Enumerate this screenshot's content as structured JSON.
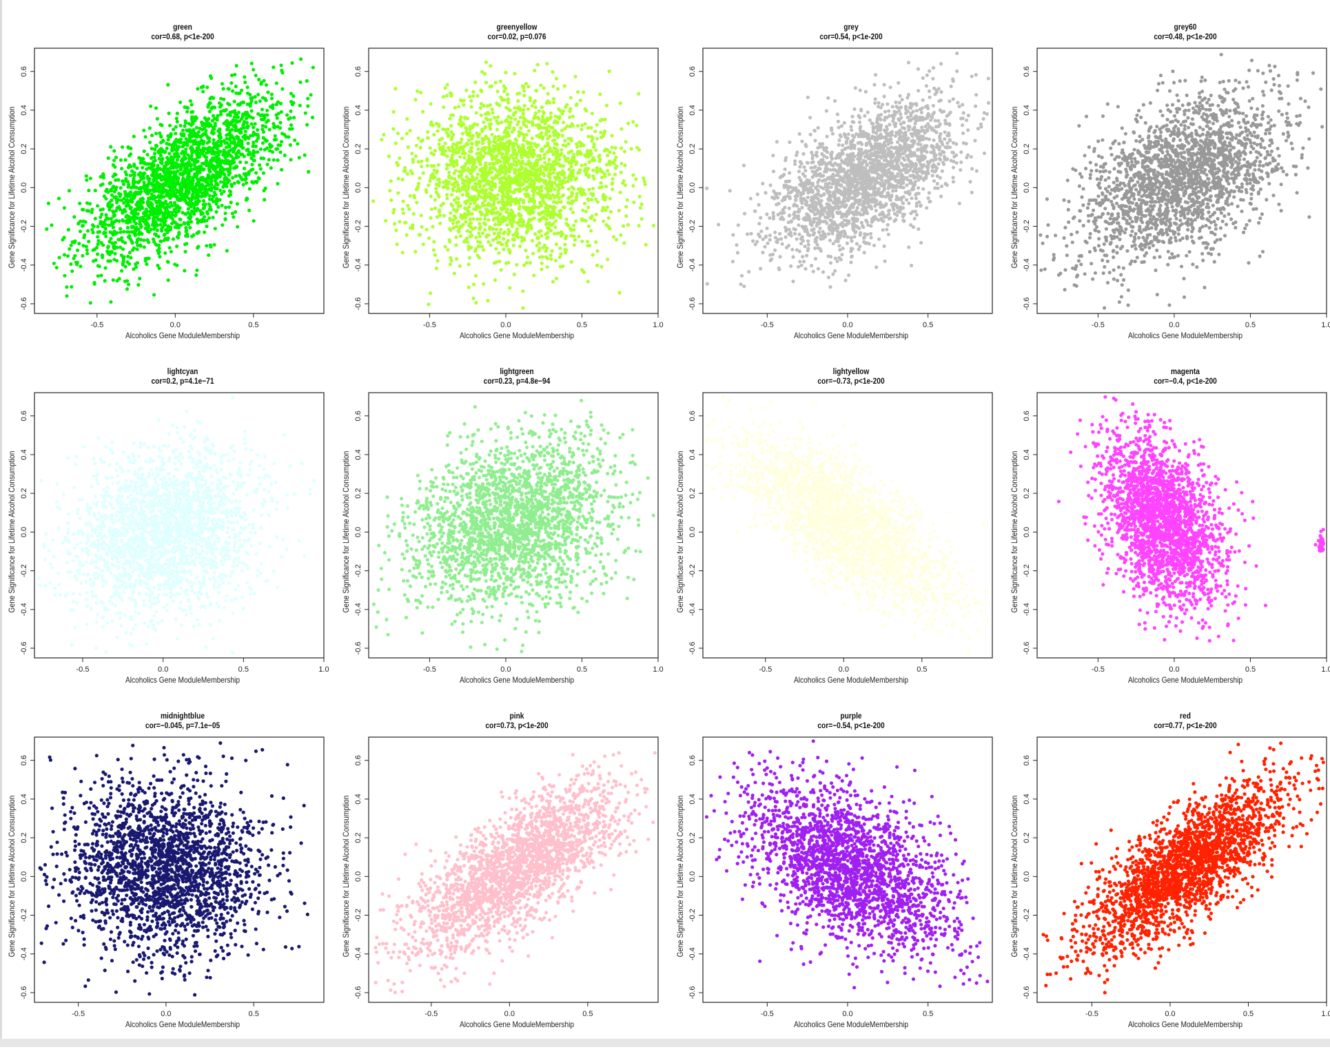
{
  "chart_data": [
    {
      "type": "scatter",
      "color": "#00ee00",
      "title": "green",
      "subtitle": "cor=0.68, p<1e-200",
      "xlabel": "Alcoholics Gene ModuleMembership",
      "ylabel": "Gene Significance for Lifetime Alcohol Consumption",
      "xlim": [
        -0.9,
        0.95
      ],
      "ylim": [
        -0.65,
        0.72
      ],
      "xticks": [
        "-0.5",
        "0.0",
        "0.5"
      ],
      "xtick_values": [
        -0.5,
        0,
        0.5
      ],
      "yticks": [
        "-0.6",
        "-0.4",
        "-0.2",
        "0.0",
        "0.2",
        "0.4",
        "0.6"
      ],
      "ytick_values": [
        -0.6,
        -0.4,
        -0.2,
        0,
        0.2,
        0.4,
        0.6
      ],
      "x_center": 0.05,
      "x_spread": 0.32,
      "y_center": 0.05,
      "y_spread": 0.22,
      "cor": 0.68
    },
    {
      "type": "scatter",
      "color": "#adff2f",
      "title": "greenyellow",
      "subtitle": "cor=0.02, p=0.076",
      "xlabel": "Alcoholics Gene ModuleMembership",
      "ylabel": "Gene Significance for Lifetime Alcohol Consumption",
      "xlim": [
        -0.9,
        1.0
      ],
      "ylim": [
        -0.65,
        0.72
      ],
      "xticks": [
        "-0.5",
        "0.0",
        "0.5",
        "1.0"
      ],
      "xtick_values": [
        -0.5,
        0,
        0.5,
        1
      ],
      "yticks": [
        "-0.6",
        "-0.4",
        "-0.2",
        "0.0",
        "0.2",
        "0.4",
        "0.6"
      ],
      "ytick_values": [
        -0.6,
        -0.4,
        -0.2,
        0,
        0.2,
        0.4,
        0.6
      ],
      "x_center": 0.05,
      "x_spread": 0.34,
      "y_center": 0.05,
      "y_spread": 0.22,
      "cor": 0.02
    },
    {
      "type": "scatter",
      "color": "#bebebe",
      "title": "grey",
      "subtitle": "cor=0.54, p<1e-200",
      "xlabel": "Alcoholics Gene ModuleMembership",
      "ylabel": "Gene Significance for Lifetime Alcohol Consumption",
      "xlim": [
        -0.9,
        0.9
      ],
      "ylim": [
        -0.65,
        0.72
      ],
      "xticks": [
        "-0.5",
        "0.0",
        "0.5"
      ],
      "xtick_values": [
        -0.5,
        0,
        0.5
      ],
      "yticks": [
        "-0.6",
        "-0.4",
        "-0.2",
        "0.0",
        "0.2",
        "0.4",
        "0.6"
      ],
      "ytick_values": [
        -0.6,
        -0.4,
        -0.2,
        0,
        0.2,
        0.4,
        0.6
      ],
      "x_center": 0.1,
      "x_spread": 0.3,
      "y_center": 0.05,
      "y_spread": 0.2,
      "cor": 0.54
    },
    {
      "type": "scatter",
      "color": "#999999",
      "title": "grey60",
      "subtitle": "cor=0.48, p<1e-200",
      "xlabel": "Alcoholics Gene ModuleMembership",
      "ylabel": "Gene Significance for Lifetime Alcohol Consumption",
      "xlim": [
        -0.9,
        1.0
      ],
      "ylim": [
        -0.65,
        0.72
      ],
      "xticks": [
        "-0.5",
        "0.0",
        "0.5",
        "1.0"
      ],
      "xtick_values": [
        -0.5,
        0,
        0.5,
        1
      ],
      "yticks": [
        "-0.6",
        "-0.4",
        "-0.2",
        "0.0",
        "0.2",
        "0.4",
        "0.6"
      ],
      "ytick_values": [
        -0.6,
        -0.4,
        -0.2,
        0,
        0.2,
        0.4,
        0.6
      ],
      "x_center": 0.05,
      "x_spread": 0.34,
      "y_center": 0.05,
      "y_spread": 0.22,
      "cor": 0.48
    },
    {
      "type": "scatter",
      "color": "#e0ffff",
      "title": "lightcyan",
      "subtitle": "cor=0.2, p=4.1e−71",
      "xlabel": "Alcoholics Gene ModuleMembership",
      "ylabel": "Gene Significance for Lifetime Alcohol Consumption",
      "xlim": [
        -0.8,
        1.0
      ],
      "ylim": [
        -0.65,
        0.72
      ],
      "xticks": [
        "-0.5",
        "0.0",
        "0.5",
        "1.0"
      ],
      "xtick_values": [
        -0.5,
        0,
        0.5,
        1
      ],
      "yticks": [
        "-0.6",
        "-0.4",
        "-0.2",
        "0.0",
        "0.2",
        "0.4",
        "0.6"
      ],
      "ytick_values": [
        -0.6,
        -0.4,
        -0.2,
        0,
        0.2,
        0.4,
        0.6
      ],
      "x_center": 0.0,
      "x_spread": 0.3,
      "y_center": 0.0,
      "y_spread": 0.22,
      "cor": 0.2
    },
    {
      "type": "scatter",
      "color": "#90ee90",
      "title": "lightgreen",
      "subtitle": "cor=0.23, p=4.8e−94",
      "xlabel": "Alcoholics Gene ModuleMembership",
      "ylabel": "Gene Significance for Lifetime Alcohol Consumption",
      "xlim": [
        -0.9,
        1.0
      ],
      "ylim": [
        -0.65,
        0.72
      ],
      "xticks": [
        "-0.5",
        "0.0",
        "0.5",
        "1.0"
      ],
      "xtick_values": [
        -0.5,
        0,
        0.5,
        1
      ],
      "yticks": [
        "-0.6",
        "-0.4",
        "-0.2",
        "0.0",
        "0.2",
        "0.4",
        "0.6"
      ],
      "ytick_values": [
        -0.6,
        -0.4,
        -0.2,
        0,
        0.2,
        0.4,
        0.6
      ],
      "x_center": 0.05,
      "x_spread": 0.34,
      "y_center": 0.05,
      "y_spread": 0.22,
      "cor": 0.23
    },
    {
      "type": "scatter",
      "color": "#ffffe0",
      "title": "lightyellow",
      "subtitle": "cor=−0.73, p<1e-200",
      "xlabel": "Alcoholics Gene ModuleMembership",
      "ylabel": "Gene Significance for Lifetime Alcohol Consumption",
      "xlim": [
        -0.9,
        0.95
      ],
      "ylim": [
        -0.65,
        0.72
      ],
      "xticks": [
        "-0.5",
        "0.0",
        "0.5"
      ],
      "xtick_values": [
        -0.5,
        0,
        0.5
      ],
      "yticks": [
        "-0.6",
        "-0.4",
        "-0.2",
        "0.0",
        "0.2",
        "0.4",
        "0.6"
      ],
      "ytick_values": [
        -0.6,
        -0.4,
        -0.2,
        0,
        0.2,
        0.4,
        0.6
      ],
      "x_center": 0.0,
      "x_spread": 0.34,
      "y_center": 0.05,
      "y_spread": 0.22,
      "cor": -0.73
    },
    {
      "type": "scatter",
      "color": "#ff44ff",
      "title": "magenta",
      "subtitle": "cor=−0.4, p<1e-200",
      "xlabel": "Alcoholics Gene ModuleMembership",
      "ylabel": "Gene Significance for Lifetime Alcohol Consumption",
      "xlim": [
        -0.9,
        1.0
      ],
      "ylim": [
        -0.65,
        0.72
      ],
      "xticks": [
        "-0.5",
        "0.0",
        "0.5",
        "1.0"
      ],
      "xtick_values": [
        -0.5,
        0,
        0.5,
        1
      ],
      "yticks": [
        "-0.6",
        "-0.4",
        "-0.2",
        "0.0",
        "0.2",
        "0.4",
        "0.6"
      ],
      "ytick_values": [
        -0.6,
        -0.4,
        -0.2,
        0,
        0.2,
        0.4,
        0.6
      ],
      "x_center": -0.08,
      "x_spread": 0.2,
      "y_center": 0.05,
      "y_spread": 0.22,
      "cor": -0.4,
      "extra_cluster": {
        "x": 0.97,
        "y": -0.05
      }
    },
    {
      "type": "scatter",
      "color": "#191970",
      "title": "midnightblue",
      "subtitle": "cor=−0.045, p=7.1e−05",
      "xlabel": "Alcoholics Gene ModuleMembership",
      "ylabel": "Gene Significance for Lifetime Alcohol Consumption",
      "xlim": [
        -0.75,
        0.9
      ],
      "ylim": [
        -0.65,
        0.72
      ],
      "xticks": [
        "-0.5",
        "0.0",
        "0.5"
      ],
      "xtick_values": [
        -0.5,
        0,
        0.5
      ],
      "yticks": [
        "-0.6",
        "-0.4",
        "-0.2",
        "0.0",
        "0.2",
        "0.4",
        "0.6"
      ],
      "ytick_values": [
        -0.6,
        -0.4,
        -0.2,
        0,
        0.2,
        0.4,
        0.6
      ],
      "x_center": 0.0,
      "x_spread": 0.28,
      "y_center": 0.05,
      "y_spread": 0.22,
      "cor": -0.045
    },
    {
      "type": "scatter",
      "color": "#ffc0cb",
      "title": "pink",
      "subtitle": "cor=0.73, p<1e-200",
      "xlabel": "Alcoholics Gene ModuleMembership",
      "ylabel": "Gene Significance for Lifetime Alcohol Consumption",
      "xlim": [
        -0.9,
        0.95
      ],
      "ylim": [
        -0.65,
        0.72
      ],
      "xticks": [
        "-0.5",
        "0.0",
        "0.5"
      ],
      "xtick_values": [
        -0.5,
        0,
        0.5
      ],
      "yticks": [
        "-0.6",
        "-0.4",
        "-0.2",
        "0.0",
        "0.2",
        "0.4",
        "0.6"
      ],
      "ytick_values": [
        -0.6,
        -0.4,
        -0.2,
        0,
        0.2,
        0.4,
        0.6
      ],
      "x_center": 0.05,
      "x_spread": 0.34,
      "y_center": 0.05,
      "y_spread": 0.22,
      "cor": 0.73
    },
    {
      "type": "scatter",
      "color": "#a020f0",
      "title": "purple",
      "subtitle": "cor=−0.54, p<1e-200",
      "xlabel": "Alcoholics Gene ModuleMembership",
      "ylabel": "Gene Significance for Lifetime Alcohol Consumption",
      "xlim": [
        -0.9,
        0.9
      ],
      "ylim": [
        -0.65,
        0.72
      ],
      "xticks": [
        "-0.5",
        "0.0",
        "0.5"
      ],
      "xtick_values": [
        -0.5,
        0,
        0.5
      ],
      "yticks": [
        "-0.6",
        "-0.4",
        "-0.2",
        "0.0",
        "0.2",
        "0.4",
        "0.6"
      ],
      "ytick_values": [
        -0.6,
        -0.4,
        -0.2,
        0,
        0.2,
        0.4,
        0.6
      ],
      "x_center": 0.0,
      "x_spread": 0.32,
      "y_center": 0.05,
      "y_spread": 0.22,
      "cor": -0.54
    },
    {
      "type": "scatter",
      "color": "#ff2200",
      "title": "red",
      "subtitle": "cor=0.77, p<1e-200",
      "xlabel": "Alcoholics Gene ModuleMembership",
      "ylabel": "Gene Significance for Lifetime Alcohol Consumption",
      "xlim": [
        -0.85,
        1.0
      ],
      "ylim": [
        -0.65,
        0.72
      ],
      "xticks": [
        "-0.5",
        "0.0",
        "0.5",
        "1.0"
      ],
      "xtick_values": [
        -0.5,
        0,
        0.5,
        1
      ],
      "yticks": [
        "-0.6",
        "-0.4",
        "-0.2",
        "0.0",
        "0.2",
        "0.4",
        "0.6"
      ],
      "ytick_values": [
        -0.6,
        -0.4,
        -0.2,
        0,
        0.2,
        0.4,
        0.6
      ],
      "x_center": 0.1,
      "x_spread": 0.32,
      "y_center": 0.05,
      "y_spread": 0.22,
      "cor": 0.77
    }
  ]
}
